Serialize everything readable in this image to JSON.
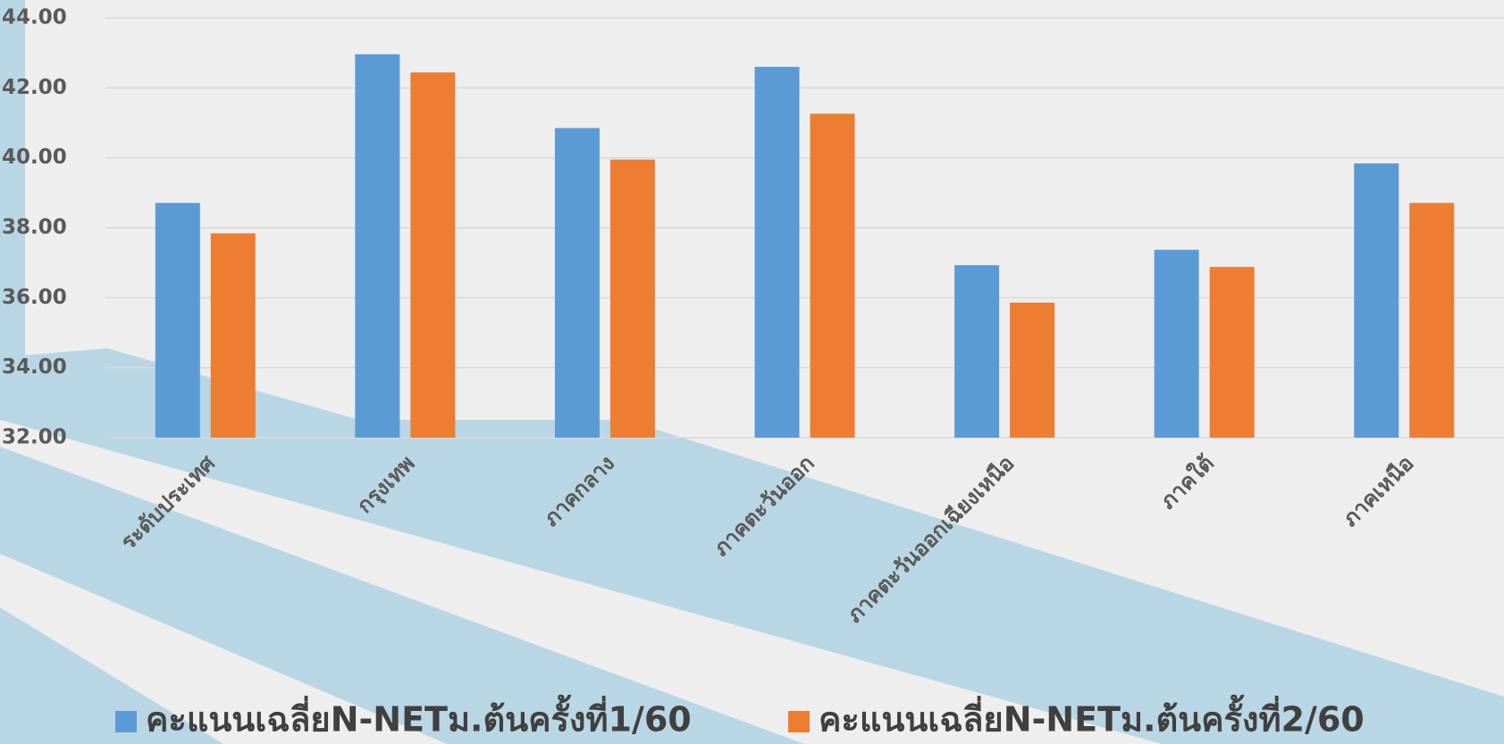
{
  "chart_data": {
    "type": "bar",
    "categories": [
      "ระดับประเทศ",
      "กรุงเทพ",
      "ภาคกลาง",
      "ภาคตะวันออก",
      "ภาคตะวันออกเฉียงเหนือ",
      "ภาคใต้",
      "ภาคเหนือ"
    ],
    "series": [
      {
        "name": "คะแนนเฉลี่ยN-NETม.ต้นครั้งที่1/60",
        "color": "#5b9bd5",
        "values": [
          38.71,
          42.96,
          40.85,
          42.6,
          36.93,
          37.37,
          39.84
        ]
      },
      {
        "name": "คะแนนเฉลี่ยN-NETม.ต้นครั้งที่2/60",
        "color": "#ed7d31",
        "values": [
          37.84,
          42.44,
          39.95,
          41.26,
          35.86,
          36.88,
          38.71
        ]
      }
    ],
    "ylim": [
      32,
      44
    ],
    "yticks": [
      {
        "value": 32,
        "label": "32.00"
      },
      {
        "value": 34,
        "label": "34.00"
      },
      {
        "value": 36,
        "label": "36.00"
      },
      {
        "value": 38,
        "label": "38.00"
      },
      {
        "value": 40,
        "label": "40.00"
      },
      {
        "value": 42,
        "label": "42.00"
      },
      {
        "value": 44,
        "label": "44.00"
      }
    ],
    "grid": true,
    "legend": "bottom"
  }
}
